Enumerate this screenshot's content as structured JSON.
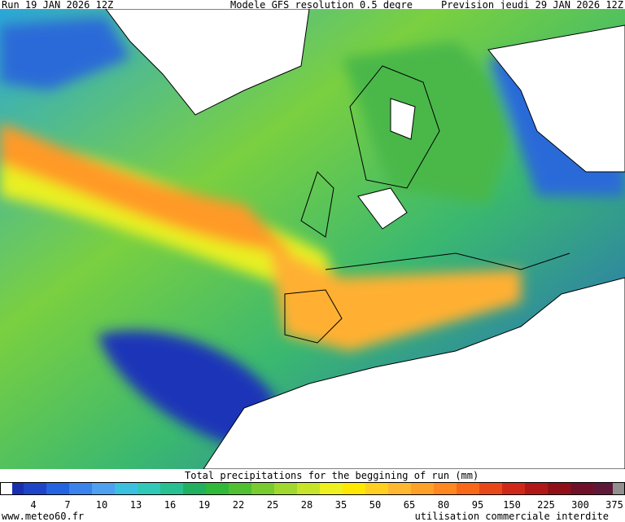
{
  "header": {
    "run": "Run 19 JAN 2026 12Z",
    "model": "Modele GFS resolution 0.5 degre",
    "forecast": "Prevision jeudi 29 JAN 2026 12Z"
  },
  "colorbar": {
    "title": "Total precipitations for the beggining of run (mm)",
    "labels": [
      "4",
      "7",
      "10",
      "13",
      "16",
      "19",
      "22",
      "25",
      "28",
      "35",
      "50",
      "65",
      "80",
      "95",
      "150",
      "225",
      "300",
      "375"
    ]
  },
  "footer": {
    "site": "www.meteo60.fr",
    "notice": "utilisation commerciale interdite"
  }
}
